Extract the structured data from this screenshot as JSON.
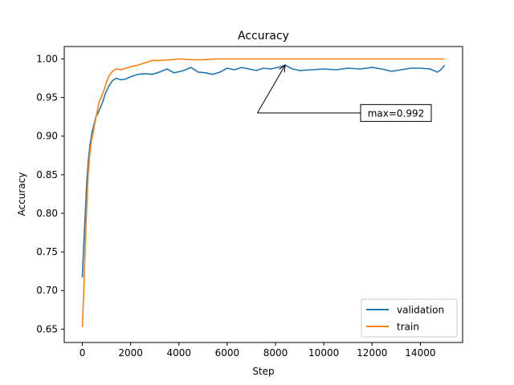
{
  "chart_data": {
    "type": "line",
    "title": "Accuracy",
    "xlabel": "Step",
    "ylabel": "Accuracy",
    "xlim": [
      -750,
      15750
    ],
    "ylim": [
      0.6327,
      1.0161
    ],
    "xticks": [
      0,
      2000,
      4000,
      6000,
      8000,
      10000,
      12000,
      14000
    ],
    "xtick_labels": [
      "0",
      "2000",
      "4000",
      "6000",
      "8000",
      "10000",
      "12000",
      "14000"
    ],
    "yticks": [
      0.65,
      0.7,
      0.75,
      0.8,
      0.85,
      0.9,
      0.95,
      1.0
    ],
    "ytick_labels": [
      "0.65",
      "0.70",
      "0.75",
      "0.80",
      "0.85",
      "0.90",
      "0.95",
      "1.00"
    ],
    "grid": false,
    "legend_position": "lower-right",
    "series": [
      {
        "name": "validation",
        "color": "#1f77b4",
        "points": [
          [
            0,
            0.717
          ],
          [
            60,
            0.76
          ],
          [
            120,
            0.8
          ],
          [
            180,
            0.84
          ],
          [
            250,
            0.87
          ],
          [
            320,
            0.89
          ],
          [
            400,
            0.905
          ],
          [
            480,
            0.915
          ],
          [
            560,
            0.925
          ],
          [
            650,
            0.93
          ],
          [
            750,
            0.937
          ],
          [
            850,
            0.945
          ],
          [
            950,
            0.955
          ],
          [
            1100,
            0.965
          ],
          [
            1250,
            0.972
          ],
          [
            1400,
            0.975
          ],
          [
            1600,
            0.973
          ],
          [
            1800,
            0.974
          ],
          [
            2000,
            0.977
          ],
          [
            2300,
            0.98
          ],
          [
            2600,
            0.981
          ],
          [
            2900,
            0.98
          ],
          [
            3200,
            0.983
          ],
          [
            3500,
            0.987
          ],
          [
            3800,
            0.982
          ],
          [
            4200,
            0.985
          ],
          [
            4500,
            0.989
          ],
          [
            4800,
            0.983
          ],
          [
            5100,
            0.982
          ],
          [
            5400,
            0.98
          ],
          [
            5700,
            0.983
          ],
          [
            6000,
            0.988
          ],
          [
            6300,
            0.986
          ],
          [
            6600,
            0.989
          ],
          [
            6900,
            0.987
          ],
          [
            7200,
            0.985
          ],
          [
            7500,
            0.988
          ],
          [
            7800,
            0.987
          ],
          [
            8100,
            0.989
          ],
          [
            8400,
            0.992
          ],
          [
            8700,
            0.987
          ],
          [
            9000,
            0.985
          ],
          [
            9500,
            0.986
          ],
          [
            10000,
            0.987
          ],
          [
            10500,
            0.986
          ],
          [
            11000,
            0.988
          ],
          [
            11500,
            0.987
          ],
          [
            12000,
            0.989
          ],
          [
            12400,
            0.987
          ],
          [
            12800,
            0.984
          ],
          [
            13200,
            0.986
          ],
          [
            13600,
            0.988
          ],
          [
            14000,
            0.988
          ],
          [
            14400,
            0.987
          ],
          [
            14700,
            0.983
          ],
          [
            14850,
            0.986
          ],
          [
            15000,
            0.992
          ]
        ]
      },
      {
        "name": "train",
        "color": "#ff7f0e",
        "points": [
          [
            0,
            0.653
          ],
          [
            60,
            0.7
          ],
          [
            120,
            0.76
          ],
          [
            180,
            0.81
          ],
          [
            240,
            0.85
          ],
          [
            300,
            0.875
          ],
          [
            380,
            0.895
          ],
          [
            450,
            0.905
          ],
          [
            520,
            0.918
          ],
          [
            600,
            0.93
          ],
          [
            700,
            0.945
          ],
          [
            800,
            0.952
          ],
          [
            900,
            0.96
          ],
          [
            1000,
            0.97
          ],
          [
            1100,
            0.978
          ],
          [
            1250,
            0.984
          ],
          [
            1400,
            0.987
          ],
          [
            1600,
            0.986
          ],
          [
            1800,
            0.988
          ],
          [
            2000,
            0.99
          ],
          [
            2300,
            0.992
          ],
          [
            2600,
            0.995
          ],
          [
            2900,
            0.998
          ],
          [
            3200,
            0.998
          ],
          [
            3600,
            0.999
          ],
          [
            4000,
            1.0
          ],
          [
            4500,
            0.999
          ],
          [
            5000,
            0.999
          ],
          [
            5500,
            1.0
          ],
          [
            6000,
            1.0
          ],
          [
            7000,
            1.0
          ],
          [
            8000,
            1.0
          ],
          [
            9000,
            1.0
          ],
          [
            10000,
            1.0
          ],
          [
            11000,
            1.0
          ],
          [
            12000,
            1.0
          ],
          [
            13000,
            1.0
          ],
          [
            14000,
            1.0
          ],
          [
            15000,
            1.0
          ]
        ]
      }
    ],
    "annotation": {
      "text": "max=0.992",
      "xy": [
        8400,
        0.992
      ],
      "xytext": [
        7250,
        0.93
      ]
    }
  }
}
